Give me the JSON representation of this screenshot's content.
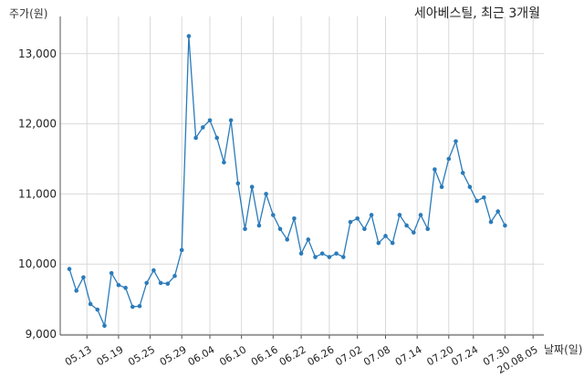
{
  "chart_data": {
    "type": "line",
    "title": "세아베스틸, 최근 3개월",
    "ylabel": "주가(원)",
    "xlabel": "날짜(일)",
    "ylim": [
      9000,
      13500
    ],
    "yticks": [
      9000,
      10000,
      11000,
      12000,
      13000
    ],
    "ytick_labels": [
      "9,000",
      "10,000",
      "11,000",
      "12,000",
      "13,000"
    ],
    "grid": true,
    "color": "#2b7bba",
    "x_ticks": [
      {
        "label": "05.13",
        "index": 2.5
      },
      {
        "label": "05.19",
        "index": 7
      },
      {
        "label": "05.25",
        "index": 11.5
      },
      {
        "label": "05.29",
        "index": 16
      },
      {
        "label": "06.04",
        "index": 20
      },
      {
        "label": "06.10",
        "index": 24.5
      },
      {
        "label": "06.16",
        "index": 29
      },
      {
        "label": "06.22",
        "index": 33
      },
      {
        "label": "06.26",
        "index": 37
      },
      {
        "label": "07.02",
        "index": 41
      },
      {
        "label": "07.08",
        "index": 45
      },
      {
        "label": "07.14",
        "index": 49.5
      },
      {
        "label": "07.20",
        "index": 54
      },
      {
        "label": "07.24",
        "index": 57.5
      },
      {
        "label": "07.30",
        "index": 62
      },
      {
        "label": "20.08.05",
        "index": 66
      }
    ],
    "values": [
      9930,
      9620,
      9810,
      9430,
      9350,
      9120,
      9870,
      9700,
      9660,
      9390,
      9400,
      9730,
      9910,
      9730,
      9720,
      9830,
      10200,
      13250,
      11800,
      11950,
      12050,
      11800,
      11450,
      12050,
      11150,
      10500,
      11100,
      10550,
      11000,
      10700,
      10500,
      10350,
      10650,
      10150,
      10350,
      10100,
      10150,
      10100,
      10150,
      10100,
      10600,
      10650,
      10500,
      10700,
      10300,
      10400,
      10300,
      10700,
      10550,
      10450,
      10700,
      10500,
      11350,
      11100,
      11500,
      11750,
      11300,
      11100,
      10900,
      10950,
      10600,
      10750,
      10550
    ]
  }
}
